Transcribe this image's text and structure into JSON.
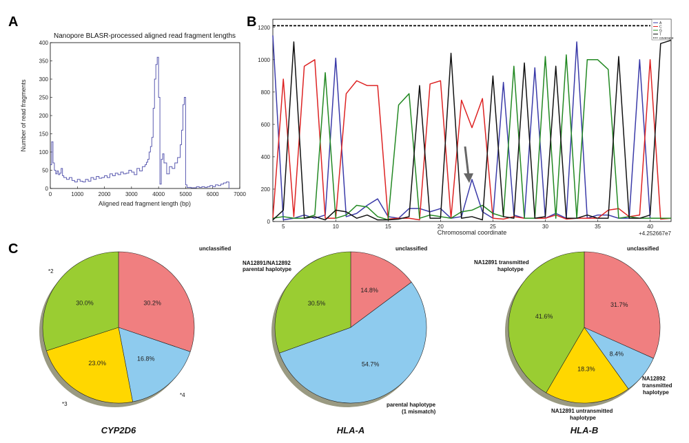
{
  "panels": {
    "a": "A",
    "b": "B",
    "c": "C"
  },
  "chart_data": [
    {
      "type": "line",
      "panel": "A",
      "title": "Nanopore BLASR-processed aligned read fragment lengths",
      "xlabel": "Aligned read fragment length (bp)",
      "ylabel": "Number of read fragments",
      "xlim": [
        0,
        7000
      ],
      "ylim": [
        0,
        400
      ],
      "xticks": [
        0,
        1000,
        2000,
        3000,
        4000,
        5000,
        6000,
        7000
      ],
      "yticks": [
        0,
        50,
        100,
        150,
        200,
        250,
        300,
        350,
        400
      ],
      "color": "#5a5ab0",
      "x": [
        0,
        50,
        100,
        150,
        200,
        250,
        300,
        350,
        400,
        450,
        500,
        600,
        700,
        800,
        900,
        1000,
        1100,
        1200,
        1300,
        1400,
        1500,
        1600,
        1700,
        1800,
        1900,
        2000,
        2100,
        2200,
        2300,
        2400,
        2500,
        2600,
        2700,
        2800,
        2900,
        3000,
        3100,
        3200,
        3300,
        3400,
        3500,
        3550,
        3600,
        3650,
        3700,
        3750,
        3800,
        3850,
        3900,
        3950,
        4000,
        4050,
        4100,
        4150,
        4200,
        4300,
        4400,
        4500,
        4600,
        4700,
        4800,
        4850,
        4900,
        4950,
        5000,
        5050,
        5100,
        5200,
        5300,
        5400,
        5500,
        5600,
        5700,
        5800,
        5900,
        6000,
        6100,
        6200,
        6300,
        6400,
        6500,
        6600
      ],
      "y": [
        65,
        128,
        70,
        50,
        40,
        48,
        38,
        42,
        55,
        35,
        30,
        25,
        30,
        22,
        18,
        25,
        20,
        18,
        25,
        20,
        30,
        25,
        33,
        28,
        30,
        35,
        30,
        40,
        35,
        42,
        38,
        45,
        40,
        42,
        50,
        45,
        38,
        55,
        48,
        60,
        65,
        72,
        80,
        100,
        115,
        140,
        220,
        300,
        340,
        360,
        250,
        12,
        80,
        95,
        70,
        40,
        60,
        55,
        70,
        85,
        120,
        160,
        230,
        250,
        10,
        3,
        3,
        2,
        2,
        5,
        3,
        5,
        3,
        5,
        8,
        5,
        10,
        8,
        12,
        15,
        18,
        0
      ]
    },
    {
      "type": "line",
      "panel": "B",
      "xlabel": "Chromosomal coordinate",
      "x_offset_label": "+4.252667e7",
      "xlim": [
        4,
        42
      ],
      "ylim": [
        0,
        1250
      ],
      "xticks": [
        5,
        10,
        15,
        20,
        25,
        30,
        35,
        40
      ],
      "yticks": [
        0,
        200,
        400,
        600,
        800,
        1000,
        1200
      ],
      "legend": [
        "A",
        "C",
        "G",
        "T",
        "coverage"
      ],
      "coverage": 1210,
      "x": [
        4,
        5,
        6,
        7,
        8,
        9,
        10,
        11,
        12,
        13,
        14,
        15,
        16,
        17,
        18,
        19,
        20,
        21,
        22,
        23,
        24,
        25,
        26,
        27,
        28,
        29,
        30,
        31,
        32,
        33,
        34,
        35,
        36,
        37,
        38,
        39,
        40,
        41,
        42
      ],
      "series": [
        {
          "name": "A",
          "color": "#3a3aa8",
          "values": [
            1150,
            10,
            20,
            40,
            20,
            40,
            1010,
            30,
            50,
            100,
            140,
            30,
            20,
            80,
            80,
            60,
            80,
            20,
            30,
            260,
            60,
            20,
            860,
            40,
            20,
            950,
            20,
            50,
            20,
            1110,
            20,
            40,
            40,
            20,
            20,
            1000,
            20,
            20,
            20
          ]
        },
        {
          "name": "C",
          "color": "#dd2222",
          "values": [
            20,
            880,
            30,
            960,
            1000,
            20,
            20,
            790,
            870,
            840,
            840,
            15,
            20,
            20,
            10,
            850,
            870,
            20,
            750,
            580,
            760,
            20,
            15,
            30,
            20,
            20,
            20,
            40,
            15,
            20,
            20,
            20,
            70,
            80,
            30,
            40,
            1000,
            15,
            20
          ]
        },
        {
          "name": "G",
          "color": "#228822",
          "values": [
            20,
            30,
            20,
            20,
            40,
            920,
            20,
            40,
            100,
            90,
            30,
            10,
            720,
            790,
            20,
            40,
            30,
            20,
            60,
            70,
            100,
            50,
            30,
            960,
            20,
            20,
            1020,
            20,
            1030,
            20,
            1000,
            1000,
            940,
            20,
            30,
            20,
            20,
            20,
            20
          ]
        },
        {
          "name": "T",
          "color": "#111111",
          "values": [
            10,
            70,
            1110,
            20,
            30,
            10,
            70,
            60,
            20,
            40,
            10,
            10,
            15,
            30,
            840,
            20,
            20,
            1040,
            20,
            30,
            10,
            900,
            30,
            20,
            980,
            20,
            30,
            960,
            20,
            20,
            40,
            20,
            20,
            1020,
            20,
            20,
            40,
            1100,
            1120
          ]
        }
      ],
      "annotation": "arrow pointing to A peak at x=23"
    },
    {
      "type": "pie",
      "panel": "C",
      "name": "CYP2D6",
      "slices": [
        {
          "label": "unclassified",
          "value": 30.2,
          "pct": "30.2%",
          "color": "#f07f80"
        },
        {
          "label": "*4",
          "value": 16.8,
          "pct": "16.8%",
          "color": "#8ecbee"
        },
        {
          "label": "*3",
          "value": 23.0,
          "pct": "23.0%",
          "color": "#ffd700"
        },
        {
          "label": "*2",
          "value": 30.0,
          "pct": "30.0%",
          "color": "#9acd32"
        }
      ]
    },
    {
      "type": "pie",
      "panel": "C",
      "name": "HLA-A",
      "slices": [
        {
          "label": "unclassified",
          "value": 14.8,
          "pct": "14.8%",
          "color": "#f07f80"
        },
        {
          "label": "parental haplotype (1 mismatch)",
          "value": 54.7,
          "pct": "54.7%",
          "color": "#8ecbee"
        },
        {
          "label": "NA12891/NA12892 parental haplotype",
          "value": 30.5,
          "pct": "30.5%",
          "color": "#9acd32"
        }
      ]
    },
    {
      "type": "pie",
      "panel": "C",
      "name": "HLA-B",
      "slices": [
        {
          "label": "unclassified",
          "value": 31.7,
          "pct": "31.7%",
          "color": "#f07f80"
        },
        {
          "label": "NA12892 transmitted haplotype",
          "value": 8.4,
          "pct": "8.4%",
          "color": "#8ecbee"
        },
        {
          "label": "NA12891 untransmitted haplotype",
          "value": 18.3,
          "pct": "18.3%",
          "color": "#ffd700"
        },
        {
          "label": "NA12891 transmitted haplotype",
          "value": 41.6,
          "pct": "41.6%",
          "color": "#9acd32"
        }
      ]
    }
  ],
  "pie_labels": {
    "cyp2d6": {
      "unclassified": "unclassified",
      "s2": "*2",
      "s3": "*3",
      "s4": "*4"
    },
    "hla_a": {
      "unclassified": "unclassified",
      "green_l1": "NA12891/NA12892",
      "green_l2": "parental haplotype",
      "blue_l1": "parental haplotype",
      "blue_l2": "(1 mismatch)"
    },
    "hla_b": {
      "unclassified": "unclassified",
      "green_l1": "NA12891 transmitted",
      "green_l2": "haplotype",
      "blue_l1": "NA12892",
      "blue_l2": "transmitted",
      "blue_l3": "haplotype",
      "yellow_l1": "NA12891 untransmitted",
      "yellow_l2": "haplotype"
    }
  }
}
